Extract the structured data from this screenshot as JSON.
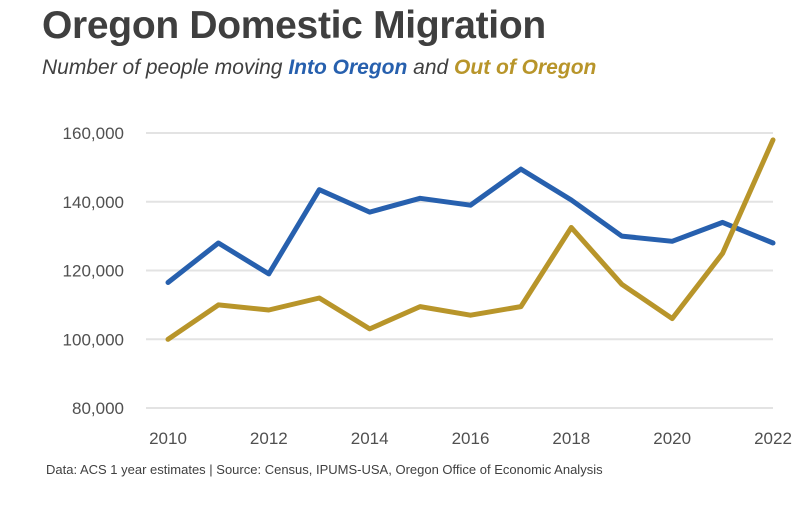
{
  "header": {
    "title": "Oregon Domestic Migration",
    "subtitle_prefix": "Number of people moving ",
    "subtitle_into": "Into Oregon",
    "subtitle_mid": " and ",
    "subtitle_out": "Out of Oregon"
  },
  "footer": {
    "source": "Data: ACS 1 year estimates | Source: Census, IPUMS-USA, Oregon Office of Economic Analysis"
  },
  "colors": {
    "into": "#2760ae",
    "out": "#b8952a",
    "grid": "#e3e3e3"
  },
  "chart_data": {
    "type": "line",
    "title": "Oregon Domestic Migration",
    "subtitle": "Number of people moving Into Oregon and Out of Oregon",
    "x": [
      2010,
      2011,
      2012,
      2013,
      2014,
      2015,
      2016,
      2017,
      2018,
      2019,
      2020,
      2021,
      2022
    ],
    "x_tick_labels": [
      "2010",
      "2012",
      "2014",
      "2016",
      "2018",
      "2020",
      "2022"
    ],
    "x_tick_values": [
      2010,
      2012,
      2014,
      2016,
      2018,
      2020,
      2022
    ],
    "y_tick_labels": [
      "80,000",
      "100,000",
      "120,000",
      "140,000",
      "160,000"
    ],
    "y_tick_values": [
      80000,
      100000,
      120000,
      140000,
      160000
    ],
    "ylim": [
      80000,
      160000
    ],
    "xlim": [
      2010,
      2022
    ],
    "grid": "horizontal",
    "series": [
      {
        "name": "Into Oregon",
        "color": "#2760ae",
        "values": [
          116500,
          128000,
          119000,
          143500,
          137000,
          141000,
          139000,
          149500,
          140500,
          130000,
          128500,
          134000,
          128000
        ]
      },
      {
        "name": "Out of Oregon",
        "color": "#b8952a",
        "values": [
          100000,
          110000,
          108500,
          112000,
          103000,
          109500,
          107000,
          109500,
          132500,
          116000,
          106000,
          125000,
          158000
        ]
      }
    ]
  }
}
